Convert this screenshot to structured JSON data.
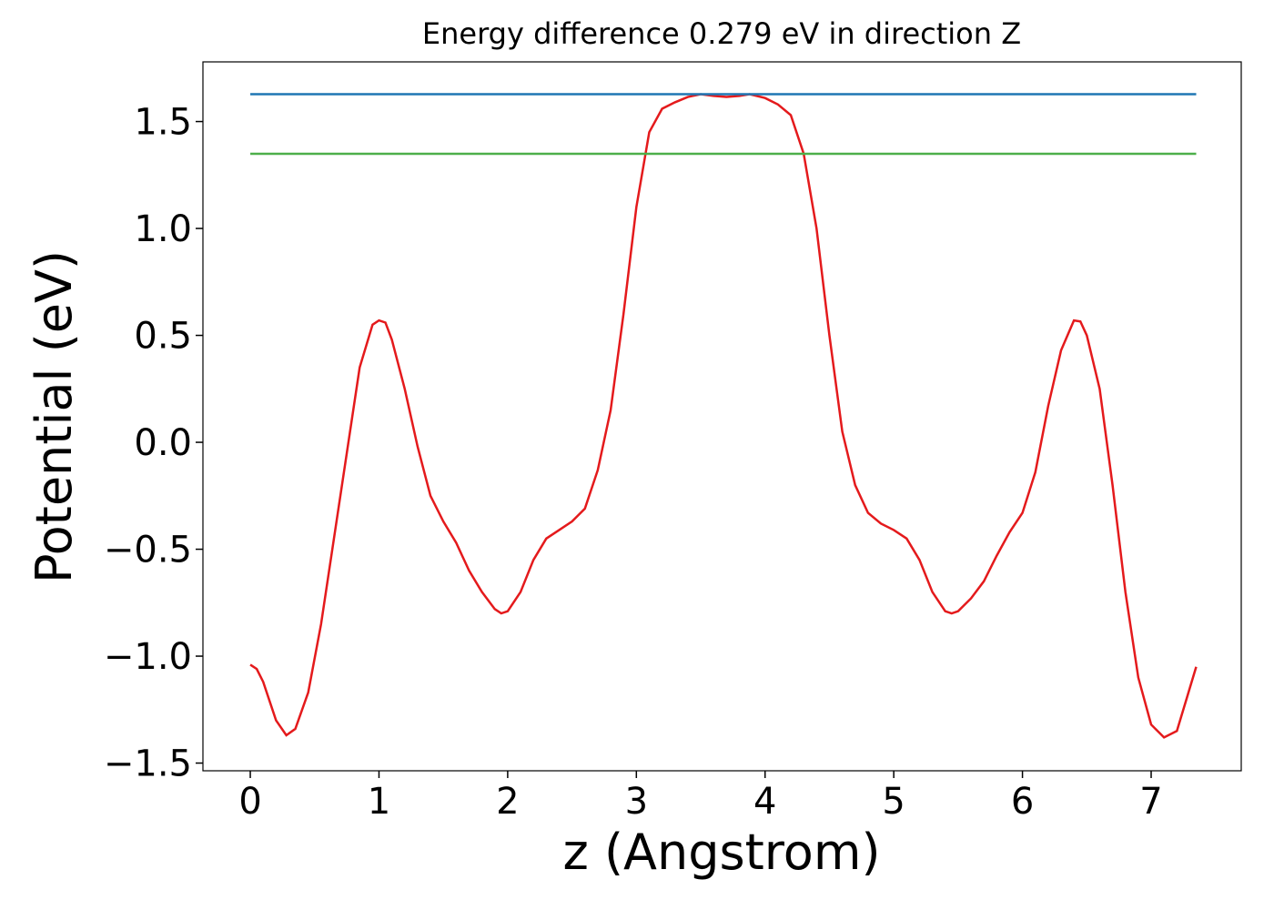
{
  "chart_data": {
    "type": "line",
    "title": "Energy difference 0.279 eV in direction Z",
    "x_label": "z (Angstrom)",
    "y_label": "Potential (eV)",
    "xlim": [
      -0.368,
      7.7
    ],
    "ylim": [
      -1.536,
      1.779
    ],
    "xticks": [
      0,
      1,
      2,
      3,
      4,
      5,
      6,
      7
    ],
    "yticks": [
      {
        "value": -1.5,
        "label": "−1.5"
      },
      {
        "value": -1,
        "label": "−1.0"
      },
      {
        "value": -0.5,
        "label": "−0.5"
      },
      {
        "value": 0,
        "label": "0.0"
      },
      0.5,
      {
        "value": 1,
        "label": "1.0"
      },
      1.5
    ],
    "series": [
      {
        "color": "#e41a1c",
        "x": [
          0,
          0.05,
          0.1,
          0.2,
          0.28,
          0.35,
          0.45,
          0.55,
          0.65,
          0.75,
          0.85,
          0.95,
          1.0,
          1.05,
          1.1,
          1.2,
          1.3,
          1.4,
          1.5,
          1.6,
          1.7,
          1.8,
          1.9,
          1.95,
          2.0,
          2.1,
          2.2,
          2.3,
          2.4,
          2.5,
          2.6,
          2.7,
          2.8,
          2.9,
          3.0,
          3.1,
          3.2,
          3.3,
          3.4,
          3.5,
          3.6,
          3.7,
          3.8,
          3.88,
          4.0,
          4.1,
          4.2,
          4.3,
          4.4,
          4.5,
          4.6,
          4.7,
          4.8,
          4.9,
          5.0,
          5.1,
          5.2,
          5.3,
          5.4,
          5.45,
          5.5,
          5.6,
          5.7,
          5.8,
          5.9,
          6.0,
          6.1,
          6.2,
          6.3,
          6.4,
          6.45,
          6.5,
          6.6,
          6.7,
          6.8,
          6.9,
          7.0,
          7.1,
          7.2,
          7.3,
          7.35
        ],
        "values": [
          -1.04,
          -1.06,
          -1.12,
          -1.3,
          -1.37,
          -1.34,
          -1.17,
          -0.85,
          -0.45,
          -0.05,
          0.35,
          0.55,
          0.57,
          0.56,
          0.48,
          0.25,
          -0.02,
          -0.25,
          -0.37,
          -0.47,
          -0.6,
          -0.7,
          -0.78,
          -0.8,
          -0.79,
          -0.7,
          -0.55,
          -0.45,
          -0.41,
          -0.37,
          -0.31,
          -0.13,
          0.15,
          0.6,
          1.1,
          1.45,
          1.56,
          1.59,
          1.615,
          1.628,
          1.62,
          1.615,
          1.62,
          1.628,
          1.61,
          1.58,
          1.53,
          1.35,
          1.0,
          0.5,
          0.05,
          -0.2,
          -0.33,
          -0.38,
          -0.41,
          -0.45,
          -0.55,
          -0.7,
          -0.79,
          -0.8,
          -0.79,
          -0.73,
          -0.65,
          -0.53,
          -0.42,
          -0.33,
          -0.14,
          0.17,
          0.43,
          0.57,
          0.565,
          0.5,
          0.25,
          -0.2,
          -0.7,
          -1.1,
          -1.32,
          -1.38,
          -1.35,
          -1.15,
          -1.05
        ]
      },
      {
        "color": "#1f77b4",
        "x": [
          0,
          7.35
        ],
        "values": [
          1.628,
          1.628
        ]
      },
      {
        "color": "#4daf4a",
        "x": [
          0,
          7.35
        ],
        "values": [
          1.349,
          1.349
        ]
      }
    ]
  }
}
